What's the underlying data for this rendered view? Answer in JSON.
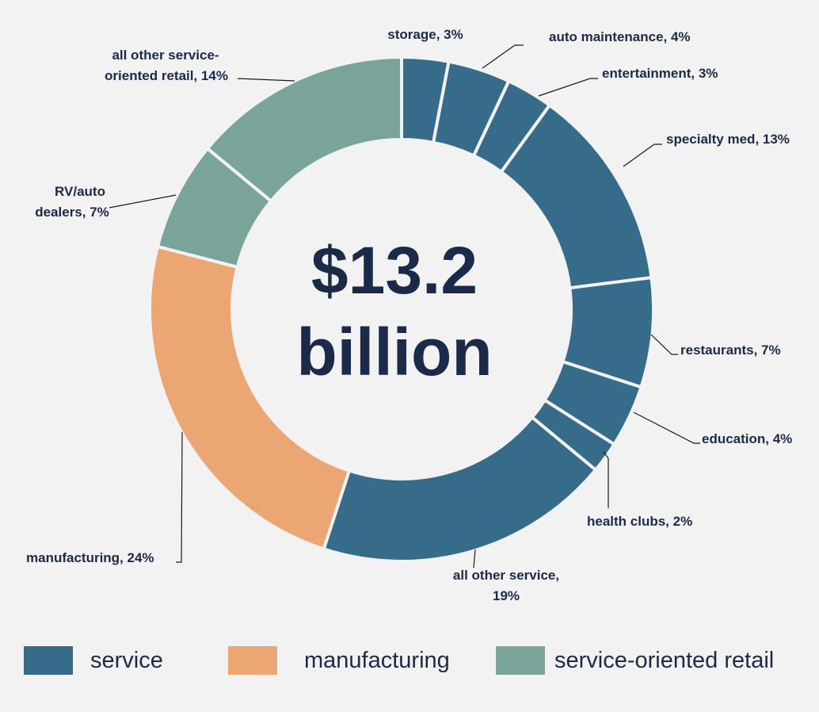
{
  "center": {
    "line1": "$13.2",
    "line2": "billion"
  },
  "colors": {
    "service": "#376b8a",
    "manufacturing": "#eba674",
    "service-oriented retail": "#7aa39a",
    "background": "#f2f2f2",
    "text": "#1c2a4a"
  },
  "chart_data": {
    "type": "pie",
    "variant": "donut",
    "title": "$13.2 billion",
    "slices": [
      {
        "label": "storage",
        "value": 3,
        "label_text": "storage, 3%",
        "category": "service"
      },
      {
        "label": "auto maintenance",
        "value": 4,
        "label_text": "auto maintenance, 4%",
        "category": "service"
      },
      {
        "label": "entertainment",
        "value": 3,
        "label_text": "entertainment, 3%",
        "category": "service"
      },
      {
        "label": "specialty med",
        "value": 13,
        "label_text": "specialty med, 13%",
        "category": "service"
      },
      {
        "label": "restaurants",
        "value": 7,
        "label_text": "restaurants, 7%",
        "category": "service"
      },
      {
        "label": "education",
        "value": 4,
        "label_text": "education, 4%",
        "category": "service"
      },
      {
        "label": "health clubs",
        "value": 2,
        "label_text": "health clubs, 2%",
        "category": "service"
      },
      {
        "label": "all other service",
        "value": 19,
        "label_lines": [
          "all other service,",
          "19%"
        ],
        "category": "service"
      },
      {
        "label": "manufacturing",
        "value": 24,
        "label_text": "manufacturing, 24%",
        "category": "manufacturing"
      },
      {
        "label": "RV/auto dealers",
        "value": 7,
        "label_lines": [
          "RV/auto",
          "dealers, 7%"
        ],
        "category": "service-oriented retail"
      },
      {
        "label": "all other service-oriented retail",
        "value": 14,
        "label_lines": [
          "all other service-",
          "oriented retail, 14%"
        ],
        "category": "service-oriented retail"
      }
    ],
    "legend": [
      {
        "name": "service"
      },
      {
        "name": "manufacturing"
      },
      {
        "name": "service-oriented retail"
      }
    ],
    "legend_position": "bottom"
  }
}
